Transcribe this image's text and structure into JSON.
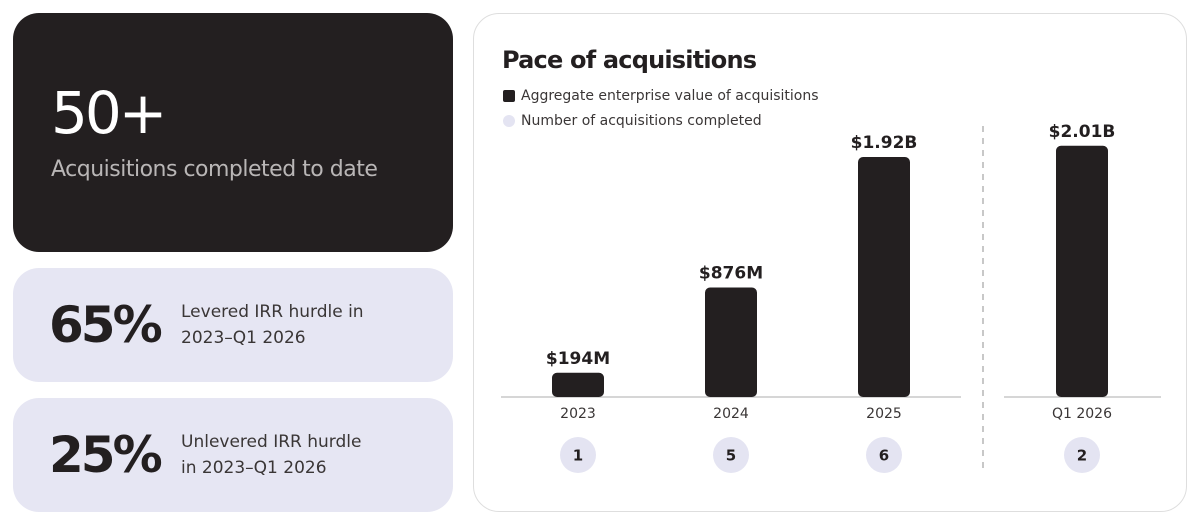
{
  "stats": [
    {
      "value": "50+",
      "label": "Acquisitions completed to date"
    },
    {
      "value": "65%",
      "label": "Levered IRR hurdle in 2023–Q1 2026"
    },
    {
      "value": "25%",
      "label": "Unlevered IRR hurdle in 2023–Q1 2026"
    }
  ],
  "chart_data": {
    "type": "bar",
    "title": "Pace of acquisitions",
    "categories": [
      "2023",
      "2024",
      "2025",
      "Q1 2026"
    ],
    "ylim": [
      0,
      2200000000
    ],
    "series": [
      {
        "name": "Aggregate enterprise value of acquisitions",
        "color": "#231f20",
        "values": [
          194000000,
          876000000,
          1920000000,
          2010000000
        ],
        "value_labels": [
          "$194M",
          "$876M",
          "$1.92B",
          "$2.01B"
        ]
      },
      {
        "name": "Number of acquisitions completed",
        "color": "#e4e4f2",
        "values": [
          1,
          5,
          6,
          2
        ]
      }
    ]
  }
}
